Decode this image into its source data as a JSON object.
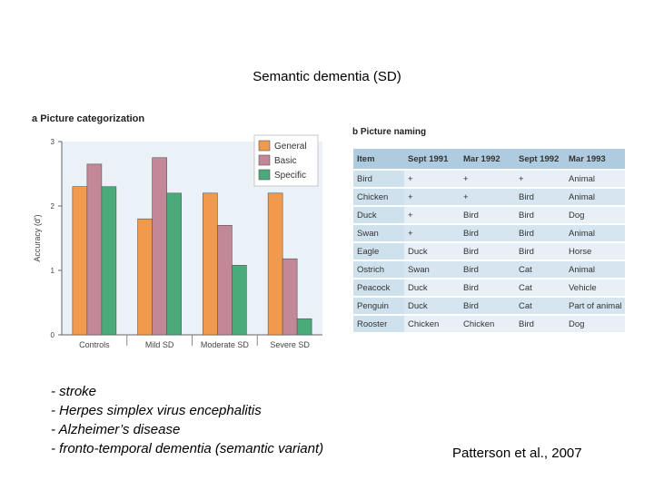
{
  "slide": {
    "title": "Semantic dementia (SD)",
    "citation": "Patterson et al., 2007",
    "bullets": [
      "- stroke",
      "- Herpes simplex virus encephalitis",
      "- Alzheimer’s disease",
      "- fronto-temporal dementia (semantic variant)"
    ]
  },
  "panel_a": {
    "label": "a",
    "title": "Picture categorization"
  },
  "panel_b": {
    "label": "b",
    "title": "Picture naming"
  },
  "colors": {
    "general": "#f09a4e",
    "basic": "#c38898",
    "specific": "#4aaa79",
    "plot_bg": "#eaf2f7"
  },
  "chart_data": {
    "type": "bar",
    "title": "Picture categorization",
    "xlabel": "",
    "ylabel": "Accuracy (d′)",
    "ylim": [
      0,
      3
    ],
    "yticks": [
      "0",
      "1",
      "2",
      "3"
    ],
    "categories": [
      "Controls",
      "Mild SD",
      "Moderate SD",
      "Severe SD"
    ],
    "series": [
      {
        "name": "General",
        "values": [
          2.3,
          1.8,
          2.2,
          2.2
        ]
      },
      {
        "name": "Basic",
        "values": [
          2.65,
          2.75,
          1.7,
          1.18
        ]
      },
      {
        "name": "Specific",
        "values": [
          2.3,
          2.2,
          1.08,
          0.25
        ]
      }
    ],
    "legend_position": "top-right"
  },
  "naming_table": {
    "headers": [
      "Item",
      "Sept 1991",
      "Mar 1992",
      "Sept 1992",
      "Mar 1993"
    ],
    "rows": [
      [
        "Bird",
        "+",
        "+",
        "+",
        "Animal"
      ],
      [
        "Chicken",
        "+",
        "+",
        "Bird",
        "Animal"
      ],
      [
        "Duck",
        "+",
        "Bird",
        "Bird",
        "Dog"
      ],
      [
        "Swan",
        "+",
        "Bird",
        "Bird",
        "Animal"
      ],
      [
        "Eagle",
        "Duck",
        "Bird",
        "Bird",
        "Horse"
      ],
      [
        "Ostrich",
        "Swan",
        "Bird",
        "Cat",
        "Animal"
      ],
      [
        "Peacock",
        "Duck",
        "Bird",
        "Cat",
        "Vehicle"
      ],
      [
        "Penguin",
        "Duck",
        "Bird",
        "Cat",
        "Part of animal"
      ],
      [
        "Rooster",
        "Chicken",
        "Chicken",
        "Bird",
        "Dog"
      ]
    ]
  }
}
